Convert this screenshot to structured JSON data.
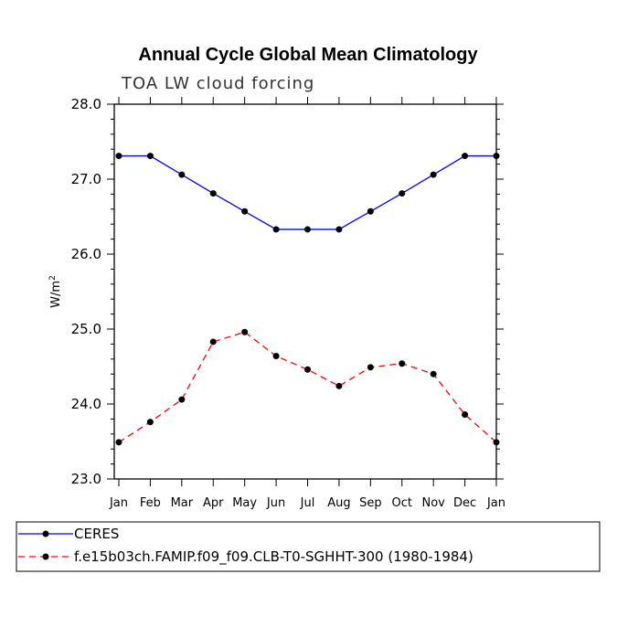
{
  "chart_data": {
    "type": "line",
    "title": "Annual Cycle Global Mean Climatology",
    "subtitle": "TOA LW cloud forcing",
    "xlabel": "",
    "ylabel": "W/m",
    "ylabel_superscript": "2",
    "ylim": [
      23.0,
      28.0
    ],
    "yticks": [
      "23.0",
      "24.0",
      "25.0",
      "26.0",
      "27.0",
      "28.0"
    ],
    "categories": [
      "Jan",
      "Feb",
      "Mar",
      "Apr",
      "May",
      "Jun",
      "Jul",
      "Aug",
      "Sep",
      "Oct",
      "Nov",
      "Dec",
      "Jan"
    ],
    "series": [
      {
        "name": "CERES",
        "color": "#0000ff",
        "dash": "solid",
        "values": [
          27.31,
          27.31,
          27.06,
          26.81,
          26.57,
          26.33,
          26.33,
          26.33,
          26.57,
          26.81,
          27.06,
          27.31,
          27.31
        ]
      },
      {
        "name": "f.e15b03ch.FAMIP.f09_f09.CLB-T0-SGHHT-300 (1980-1984)",
        "color": "#ff0000",
        "dash": "dashed",
        "values": [
          23.49,
          23.76,
          24.06,
          24.83,
          24.96,
          24.64,
          24.46,
          24.24,
          24.49,
          24.54,
          24.4,
          23.86,
          23.49
        ]
      }
    ],
    "grid": false,
    "legend_position": "bottom-left"
  }
}
